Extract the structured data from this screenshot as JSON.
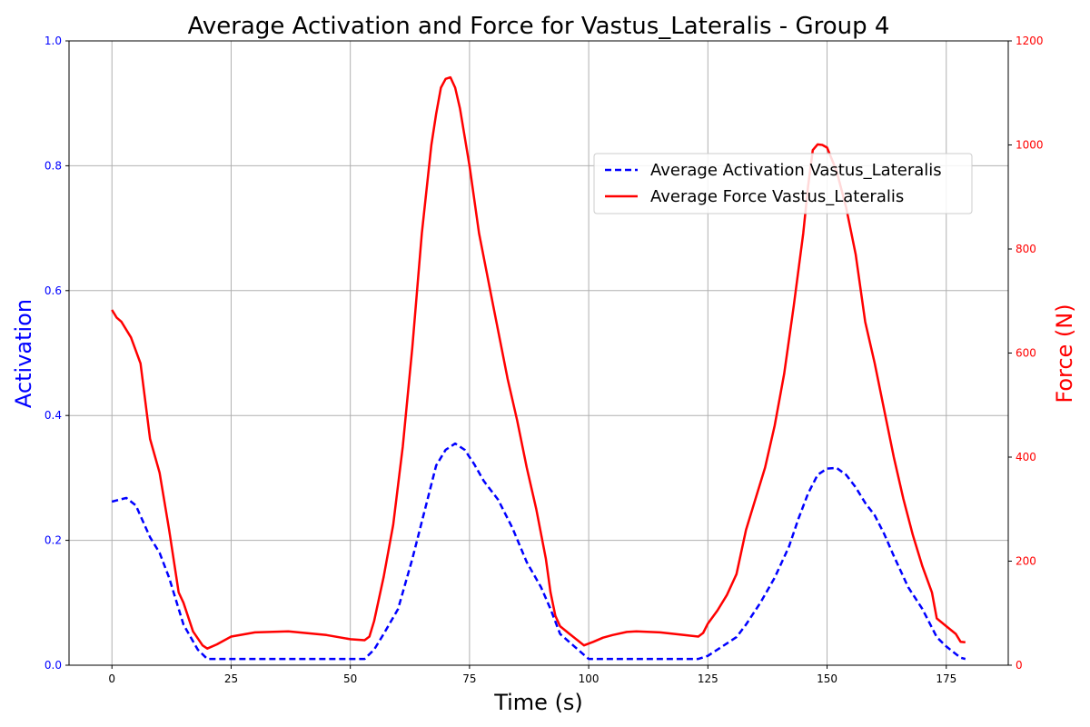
{
  "chart_data": {
    "type": "line",
    "title": "Average Activation and Force for Vastus_Lateralis - Group 4",
    "xlabel": "Time (s)",
    "ylabel_left": "Activation",
    "ylabel_right": "Force (N)",
    "xlim": [
      -9,
      188
    ],
    "ylim_left": [
      0,
      1
    ],
    "ylim_right": [
      0,
      1200
    ],
    "x_ticks": [
      0,
      25,
      50,
      75,
      100,
      125,
      150,
      175
    ],
    "y_ticks_left": [
      "0.0",
      "0.2",
      "0.4",
      "0.6",
      "0.8",
      "1.0"
    ],
    "y_ticks_right": [
      "0",
      "200",
      "400",
      "600",
      "800",
      "1000",
      "1200"
    ],
    "grid": true,
    "legend_position": "upper-right",
    "colors": {
      "activation": "#0000ff",
      "force": "#ff0000",
      "grid": "#b0b0b0"
    },
    "series": [
      {
        "name": "Average Activation Vastus_Lateralis",
        "axis": "left",
        "style": "dashed",
        "x": [
          0,
          3,
          5,
          8,
          10,
          12,
          15,
          18,
          20,
          25,
          30,
          40,
          50,
          53,
          55,
          57,
          60,
          63,
          66,
          68,
          70,
          72,
          74,
          76,
          78,
          81,
          84,
          87,
          90,
          92,
          94,
          97,
          100,
          110,
          123,
          125,
          128,
          131,
          133,
          136,
          139,
          142,
          144,
          146,
          148,
          150,
          152,
          154,
          156,
          158,
          160,
          162,
          164,
          167,
          170,
          173,
          175,
          178,
          179
        ],
        "values": [
          0.262,
          0.268,
          0.256,
          0.205,
          0.18,
          0.14,
          0.065,
          0.025,
          0.01,
          0.01,
          0.01,
          0.01,
          0.01,
          0.01,
          0.025,
          0.05,
          0.09,
          0.17,
          0.26,
          0.32,
          0.345,
          0.355,
          0.345,
          0.322,
          0.295,
          0.265,
          0.22,
          0.165,
          0.125,
          0.09,
          0.05,
          0.03,
          0.01,
          0.01,
          0.01,
          0.015,
          0.03,
          0.045,
          0.065,
          0.1,
          0.14,
          0.19,
          0.235,
          0.275,
          0.305,
          0.315,
          0.316,
          0.305,
          0.285,
          0.26,
          0.24,
          0.21,
          0.175,
          0.125,
          0.09,
          0.045,
          0.03,
          0.012,
          0.01
        ]
      },
      {
        "name": "Average Force Vastus_Lateralis",
        "axis": "right",
        "style": "solid",
        "x": [
          0,
          1,
          2,
          4,
          6,
          8,
          10,
          12,
          14,
          15,
          17,
          19,
          20,
          22,
          25,
          30,
          37,
          45,
          50,
          53,
          54,
          55,
          57,
          59,
          61,
          63,
          65,
          67,
          68,
          69,
          70,
          71,
          72,
          73,
          75,
          77,
          80,
          83,
          85,
          87,
          89,
          91,
          92,
          93,
          94,
          96,
          99,
          101,
          103,
          105,
          108,
          110,
          115,
          120,
          123,
          124,
          125,
          127,
          129,
          131,
          133,
          135,
          137,
          139,
          141,
          143,
          145,
          146,
          147,
          148,
          149,
          150,
          152,
          154,
          156,
          158,
          160,
          162,
          164,
          166,
          168,
          170,
          172,
          173,
          175,
          177,
          178,
          179
        ],
        "values": [
          683,
          668,
          660,
          630,
          580,
          435,
          370,
          260,
          140,
          120,
          65,
          38,
          32,
          40,
          55,
          63,
          65,
          58,
          50,
          48,
          55,
          85,
          170,
          270,
          420,
          610,
          830,
          1000,
          1060,
          1110,
          1127,
          1130,
          1110,
          1070,
          960,
          830,
          690,
          550,
          470,
          380,
          300,
          205,
          140,
          95,
          75,
          60,
          38,
          45,
          53,
          58,
          64,
          65,
          63,
          58,
          55,
          62,
          80,
          105,
          135,
          175,
          260,
          320,
          380,
          460,
          560,
          690,
          830,
          920,
          990,
          1001,
          1000,
          995,
          950,
          880,
          790,
          660,
          580,
          490,
          400,
          320,
          250,
          190,
          140,
          90,
          75,
          60,
          45,
          44
        ]
      }
    ]
  }
}
